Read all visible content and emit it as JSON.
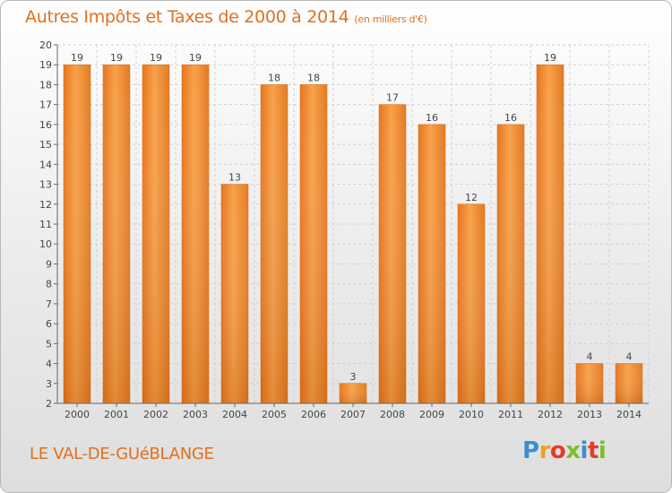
{
  "title": "Autres Impôts et Taxes de 2000 à 2014",
  "subtitle": "(en milliers d'€)",
  "commune": "LE VAL-DE-GUéBLANGE",
  "logo": {
    "letters": [
      "P",
      "r",
      "o",
      "x",
      "i",
      "t",
      "i"
    ],
    "colors": [
      "#3a8fd0",
      "#f0a020",
      "#e53a2a",
      "#7bbf2a",
      "#3a8fd0",
      "#e53a2a",
      "#7bbf2a"
    ]
  },
  "chart_data": {
    "type": "bar",
    "categories": [
      "2000",
      "2001",
      "2002",
      "2003",
      "2004",
      "2005",
      "2006",
      "2007",
      "2008",
      "2009",
      "2010",
      "2011",
      "2012",
      "2013",
      "2014"
    ],
    "values": [
      19,
      19,
      19,
      19,
      13,
      18,
      18,
      3,
      17,
      16,
      12,
      16,
      19,
      4,
      4
    ],
    "ylim": [
      2,
      20
    ],
    "yticks": [
      2,
      3,
      4,
      5,
      6,
      7,
      8,
      9,
      10,
      11,
      12,
      13,
      14,
      15,
      16,
      17,
      18,
      19,
      20
    ],
    "grid": true,
    "bar_color": "#f08a2a"
  }
}
